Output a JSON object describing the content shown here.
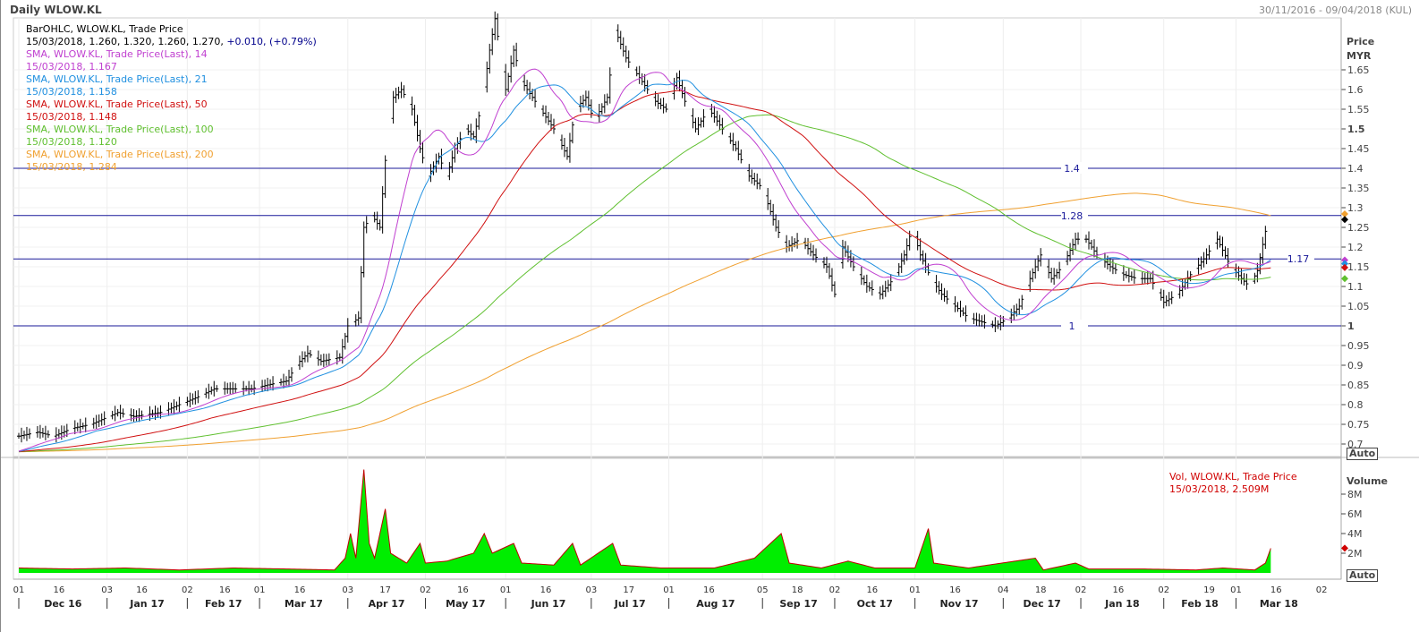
{
  "header": {
    "title": "Daily WLOW.KL",
    "date_range": "30/11/2016 - 09/04/2018 (KUL)"
  },
  "legend": [
    {
      "label": "BarOHLC, WLOW.KL, Trade Price",
      "color": "#000000"
    },
    {
      "label": "15/03/2018, 1.260, 1.320, 1.260, 1.270,",
      "extra": "+0.010, (+0.79%)",
      "color": "#000000",
      "extra_color": "#00008b"
    },
    {
      "label": "SMA, WLOW.KL, Trade Price(Last),  14",
      "color": "#c040d0"
    },
    {
      "label": "15/03/2018, 1.167",
      "color": "#c040d0"
    },
    {
      "label": "SMA, WLOW.KL, Trade Price(Last),  21",
      "color": "#2090e0"
    },
    {
      "label": "15/03/2018, 1.158",
      "color": "#2090e0"
    },
    {
      "label": "SMA, WLOW.KL, Trade Price(Last),  50",
      "color": "#d01010"
    },
    {
      "label": "15/03/2018, 1.148",
      "color": "#d01010"
    },
    {
      "label": "SMA, WLOW.KL, Trade Price(Last),  100",
      "color": "#60c030"
    },
    {
      "label": "15/03/2018, 1.120",
      "color": "#60c030"
    },
    {
      "label": "SMA, WLOW.KL, Trade Price(Last),  200",
      "color": "#f0a030"
    },
    {
      "label": "15/03/2018, 1.284",
      "color": "#f0a030"
    }
  ],
  "volume_legend": {
    "line1": "Vol, WLOW.KL, Trade Price",
    "line2": "15/03/2018, 2.509M"
  },
  "auto_label": "Auto",
  "chart_data": {
    "type": "line",
    "price_axis": {
      "title": "Price",
      "unit": "MYR",
      "ylim": [
        0.68,
        1.72
      ],
      "ticks": [
        "0.7",
        "0.75",
        "0.8",
        "0.85",
        "0.9",
        "0.95",
        "1",
        "1.05",
        "1.1",
        "1.15",
        "1.2",
        "1.25",
        "1.3",
        "1.35",
        "1.4",
        "1.45",
        "1.5",
        "1.55",
        "1.6",
        "1.65"
      ]
    },
    "volume_axis": {
      "title": "Volume",
      "ylim": [
        0,
        11
      ],
      "ticks": [
        "2M",
        "4M",
        "6M",
        "8M"
      ]
    },
    "hlines": [
      {
        "value": 1.4,
        "label": "1.4"
      },
      {
        "value": 1.28,
        "label": "1.28"
      },
      {
        "value": 1.17,
        "label": "1.17"
      },
      {
        "value": 1.0,
        "label": "1"
      }
    ],
    "x_day_ticks": [
      [
        "01",
        0
      ],
      [
        "16",
        15
      ],
      [
        "03",
        33
      ],
      [
        "16",
        46
      ],
      [
        "02",
        63
      ],
      [
        "16",
        77
      ],
      [
        "01",
        90
      ],
      [
        "16",
        105
      ],
      [
        "03",
        123
      ],
      [
        "17",
        137
      ],
      [
        "02",
        152
      ],
      [
        "16",
        166
      ],
      [
        "01",
        182
      ],
      [
        "16",
        197
      ],
      [
        "03",
        214
      ],
      [
        "17",
        228
      ],
      [
        "01",
        243
      ],
      [
        "16",
        258
      ],
      [
        "05",
        278
      ],
      [
        "18",
        291
      ],
      [
        "02",
        305
      ],
      [
        "16",
        319
      ],
      [
        "01",
        335
      ],
      [
        "16",
        350
      ],
      [
        "04",
        368
      ],
      [
        "18",
        382
      ],
      [
        "02",
        397
      ],
      [
        "16",
        411
      ],
      [
        "02",
        428
      ],
      [
        "19",
        445
      ],
      [
        "01",
        455
      ],
      [
        "16",
        470
      ],
      [
        "02",
        487
      ]
    ],
    "x_month_labels": [
      [
        "Dec 16",
        0
      ],
      [
        "Jan 17",
        33
      ],
      [
        "Feb 17",
        63
      ],
      [
        "Mar 17",
        90
      ],
      [
        "Apr 17",
        123
      ],
      [
        "May 17",
        152
      ],
      [
        "Jun 17",
        182
      ],
      [
        "Jul 17",
        214
      ],
      [
        "Aug 17",
        243
      ],
      [
        "Sep 17",
        278
      ],
      [
        "Oct 17",
        305
      ],
      [
        "Nov 17",
        335
      ],
      [
        "Dec 17",
        368
      ],
      [
        "Jan 18",
        397
      ],
      [
        "Feb 18",
        428
      ],
      [
        "Mar 18",
        455
      ]
    ],
    "close_series": [
      [
        0,
        0.72
      ],
      [
        7,
        0.73
      ],
      [
        13,
        0.72
      ],
      [
        20,
        0.74
      ],
      [
        27,
        0.75
      ],
      [
        37,
        0.78
      ],
      [
        43,
        0.77
      ],
      [
        53,
        0.78
      ],
      [
        60,
        0.8
      ],
      [
        67,
        0.82
      ],
      [
        73,
        0.84
      ],
      [
        80,
        0.84
      ],
      [
        87,
        0.84
      ],
      [
        93,
        0.85
      ],
      [
        100,
        0.86
      ],
      [
        105,
        0.91
      ],
      [
        108,
        0.93
      ],
      [
        113,
        0.91
      ],
      [
        120,
        0.92
      ],
      [
        123,
        1.0
      ],
      [
        127,
        1.02
      ],
      [
        129,
        1.25
      ],
      [
        132,
        1.28
      ],
      [
        135,
        1.25
      ],
      [
        137,
        1.42
      ],
      [
        140,
        1.58
      ],
      [
        143,
        1.6
      ],
      [
        147,
        1.55
      ],
      [
        150,
        1.45
      ],
      [
        153,
        1.38
      ],
      [
        157,
        1.43
      ],
      [
        160,
        1.38
      ],
      [
        163,
        1.45
      ],
      [
        167,
        1.5
      ],
      [
        170,
        1.48
      ],
      [
        173,
        1.56
      ],
      [
        176,
        1.7
      ],
      [
        178,
        1.78
      ],
      [
        182,
        1.6
      ],
      [
        185,
        1.7
      ],
      [
        188,
        1.62
      ],
      [
        192,
        1.58
      ],
      [
        195,
        1.55
      ],
      [
        200,
        1.5
      ],
      [
        205,
        1.43
      ],
      [
        208,
        1.55
      ],
      [
        212,
        1.58
      ],
      [
        215,
        1.52
      ],
      [
        220,
        1.58
      ],
      [
        223,
        1.75
      ],
      [
        227,
        1.68
      ],
      [
        230,
        1.65
      ],
      [
        233,
        1.62
      ],
      [
        238,
        1.57
      ],
      [
        242,
        1.55
      ],
      [
        246,
        1.63
      ],
      [
        250,
        1.55
      ],
      [
        253,
        1.5
      ],
      [
        258,
        1.55
      ],
      [
        263,
        1.5
      ],
      [
        268,
        1.45
      ],
      [
        273,
        1.38
      ],
      [
        278,
        1.35
      ],
      [
        283,
        1.25
      ],
      [
        287,
        1.2
      ],
      [
        292,
        1.22
      ],
      [
        297,
        1.18
      ],
      [
        302,
        1.15
      ],
      [
        305,
        1.08
      ],
      [
        308,
        1.2
      ],
      [
        312,
        1.15
      ],
      [
        317,
        1.1
      ],
      [
        322,
        1.08
      ],
      [
        327,
        1.12
      ],
      [
        331,
        1.18
      ],
      [
        334,
        1.25
      ],
      [
        337,
        1.18
      ],
      [
        341,
        1.12
      ],
      [
        345,
        1.08
      ],
      [
        350,
        1.05
      ],
      [
        355,
        1.02
      ],
      [
        360,
        1.01
      ],
      [
        365,
        1.0
      ],
      [
        370,
        1.02
      ],
      [
        374,
        1.05
      ],
      [
        378,
        1.12
      ],
      [
        382,
        1.18
      ],
      [
        386,
        1.12
      ],
      [
        390,
        1.15
      ],
      [
        395,
        1.22
      ],
      [
        399,
        1.22
      ],
      [
        403,
        1.18
      ],
      [
        408,
        1.15
      ],
      [
        413,
        1.13
      ],
      [
        418,
        1.12
      ],
      [
        423,
        1.12
      ],
      [
        428,
        1.06
      ],
      [
        433,
        1.08
      ],
      [
        438,
        1.13
      ],
      [
        443,
        1.17
      ],
      [
        448,
        1.22
      ],
      [
        453,
        1.15
      ],
      [
        457,
        1.12
      ],
      [
        460,
        1.1
      ],
      [
        463,
        1.14
      ],
      [
        466,
        1.24
      ],
      [
        468,
        1.27
      ]
    ],
    "volume_series_M": [
      [
        0,
        0.5
      ],
      [
        20,
        0.4
      ],
      [
        40,
        0.5
      ],
      [
        60,
        0.3
      ],
      [
        80,
        0.5
      ],
      [
        100,
        0.4
      ],
      [
        118,
        0.3
      ],
      [
        122,
        1.5
      ],
      [
        124,
        4
      ],
      [
        126,
        1.5
      ],
      [
        129,
        10.5
      ],
      [
        131,
        3
      ],
      [
        133,
        1.5
      ],
      [
        137,
        6.5
      ],
      [
        139,
        2
      ],
      [
        145,
        1
      ],
      [
        150,
        3
      ],
      [
        152,
        1
      ],
      [
        160,
        1.2
      ],
      [
        170,
        2
      ],
      [
        174,
        4
      ],
      [
        177,
        2
      ],
      [
        185,
        3
      ],
      [
        188,
        1
      ],
      [
        200,
        0.8
      ],
      [
        207,
        3
      ],
      [
        210,
        0.8
      ],
      [
        222,
        3
      ],
      [
        225,
        0.8
      ],
      [
        240,
        0.5
      ],
      [
        260,
        0.5
      ],
      [
        275,
        1.5
      ],
      [
        285,
        4
      ],
      [
        288,
        1
      ],
      [
        300,
        0.5
      ],
      [
        310,
        1.2
      ],
      [
        320,
        0.5
      ],
      [
        335,
        0.5
      ],
      [
        340,
        4.5
      ],
      [
        342,
        1
      ],
      [
        355,
        0.5
      ],
      [
        380,
        1.5
      ],
      [
        383,
        0.3
      ],
      [
        395,
        1
      ],
      [
        400,
        0.4
      ],
      [
        420,
        0.4
      ],
      [
        440,
        0.3
      ],
      [
        450,
        0.5
      ],
      [
        462,
        0.3
      ],
      [
        466,
        1
      ],
      [
        468,
        2.5
      ]
    ],
    "last_markers": {
      "price": 1.27,
      "sma14": 1.167,
      "sma21": 1.158,
      "sma50": 1.148,
      "sma100": 1.12,
      "sma200": 1.284,
      "volume": 2.509
    }
  }
}
